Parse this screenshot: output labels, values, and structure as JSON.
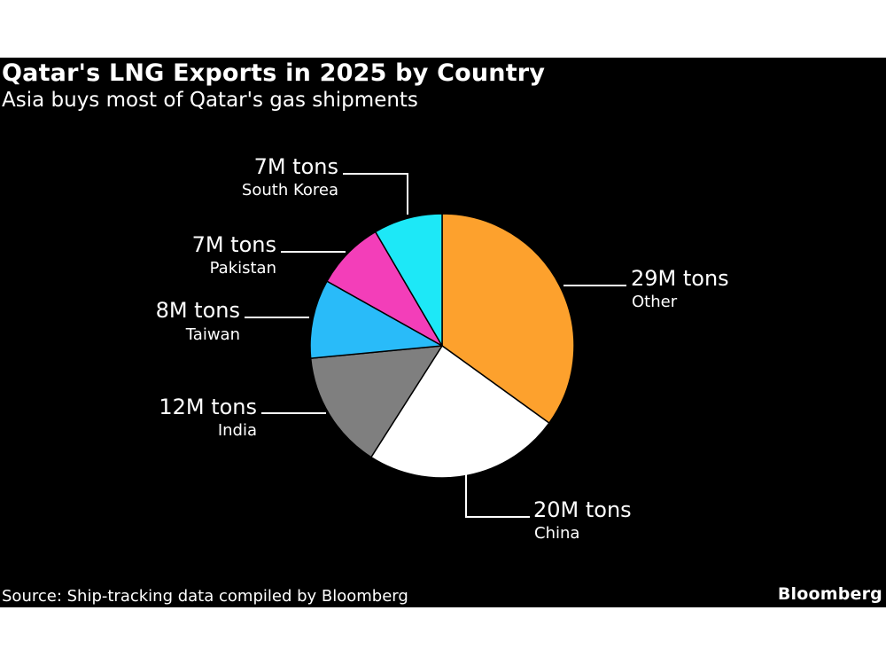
{
  "header": {
    "title": "Qatar's LNG Exports in 2025 by Country",
    "subtitle": "Asia buys most of Qatar's gas shipments"
  },
  "footer": {
    "source": "Source: Ship-tracking data compiled by Bloomberg",
    "brand": "Bloomberg"
  },
  "chart_data": {
    "type": "pie",
    "title": "Qatar's LNG Exports in 2025 by Country",
    "subtitle": "Asia buys most of Qatar's gas shipments",
    "unit": "M tons",
    "slices": [
      {
        "label": "Other",
        "value": 29,
        "value_label": "29M tons",
        "color": "#fda12d"
      },
      {
        "label": "China",
        "value": 20,
        "value_label": "20M tons",
        "color": "#ffffff"
      },
      {
        "label": "India",
        "value": 12,
        "value_label": "12M tons",
        "color": "#7f7f7f"
      },
      {
        "label": "Taiwan",
        "value": 8,
        "value_label": "8M tons",
        "color": "#29bbf9"
      },
      {
        "label": "Pakistan",
        "value": 7,
        "value_label": "7M tons",
        "color": "#f33eb9"
      },
      {
        "label": "South Korea",
        "value": 7,
        "value_label": "7M tons",
        "color": "#1de8f7"
      }
    ]
  }
}
